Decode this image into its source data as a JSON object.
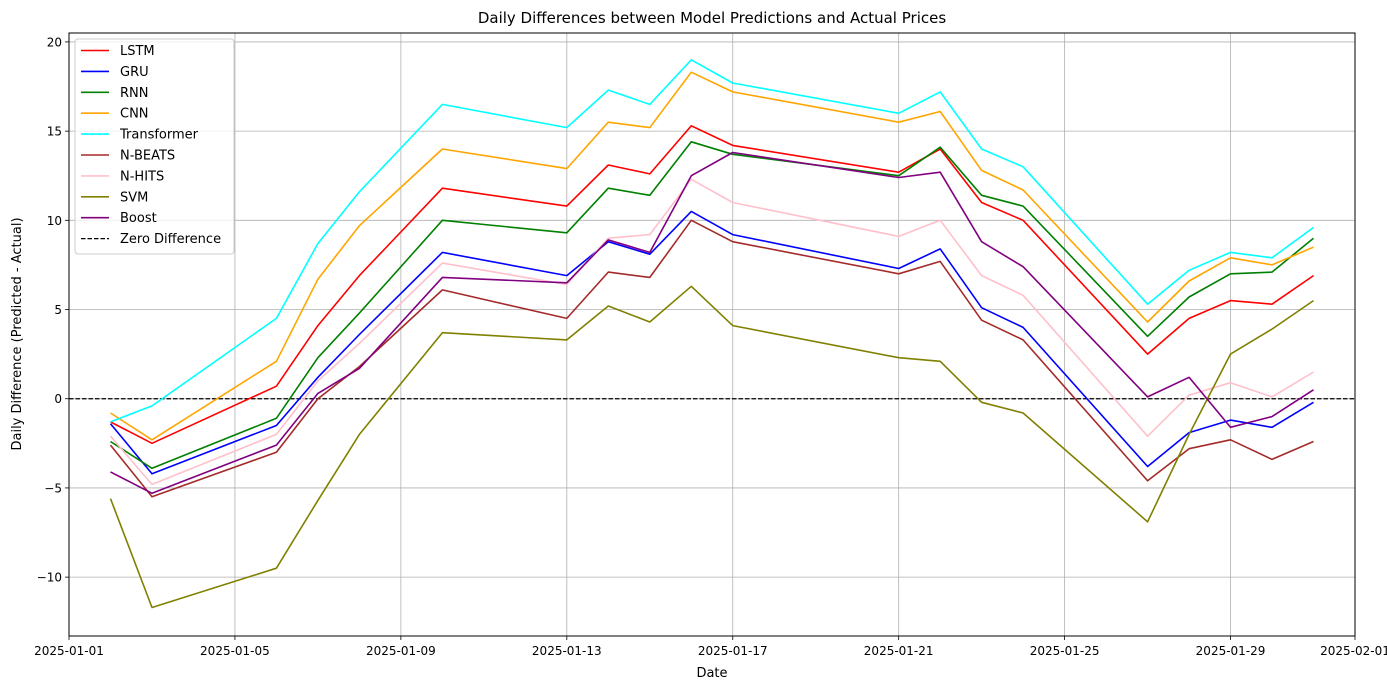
{
  "chart_data": {
    "type": "line",
    "title": "Daily Differences between Model Predictions and Actual Prices",
    "xlabel": "Date",
    "ylabel": "Daily Difference (Predicted - Actual)",
    "grid": true,
    "legend_position": "top-left",
    "xlim": [
      "2025-01-01",
      "2025-02-01"
    ],
    "ylim": [
      -13.3,
      20.5
    ],
    "x_ticks": [
      "2025-01-01",
      "2025-01-05",
      "2025-01-09",
      "2025-01-13",
      "2025-01-17",
      "2025-01-21",
      "2025-01-25",
      "2025-01-29",
      "2025-02-01"
    ],
    "y_ticks": [
      20,
      15,
      10,
      5,
      0,
      -5,
      -10
    ],
    "y_tick_labels": [
      "20",
      "15",
      "10",
      "5",
      "0",
      "−5",
      "−10"
    ],
    "x": [
      "2025-01-02",
      "2025-01-03",
      "2025-01-06",
      "2025-01-07",
      "2025-01-08",
      "2025-01-10",
      "2025-01-13",
      "2025-01-14",
      "2025-01-15",
      "2025-01-16",
      "2025-01-17",
      "2025-01-21",
      "2025-01-22",
      "2025-01-23",
      "2025-01-24",
      "2025-01-27",
      "2025-01-28",
      "2025-01-29",
      "2025-01-30",
      "2025-01-31"
    ],
    "series": [
      {
        "name": "LSTM",
        "color": "#ff0000",
        "values": [
          -1.3,
          -2.5,
          0.7,
          4.1,
          6.9,
          11.8,
          10.8,
          13.1,
          12.6,
          15.3,
          14.2,
          12.7,
          14.0,
          11.0,
          10.0,
          2.5,
          4.5,
          5.5,
          5.3,
          6.9
        ]
      },
      {
        "name": "GRU",
        "color": "#0000ff",
        "values": [
          -1.4,
          -4.2,
          -1.5,
          1.2,
          3.6,
          8.2,
          6.9,
          8.8,
          8.1,
          10.5,
          9.2,
          7.3,
          8.4,
          5.1,
          4.0,
          -3.8,
          -1.9,
          -1.2,
          -1.6,
          -0.2
        ]
      },
      {
        "name": "RNN",
        "color": "#008000",
        "values": [
          -2.4,
          -3.9,
          -1.1,
          2.3,
          4.8,
          10.0,
          9.3,
          11.8,
          11.4,
          14.4,
          13.7,
          12.5,
          14.1,
          11.4,
          10.8,
          3.5,
          5.7,
          7.0,
          7.1,
          9.0
        ]
      },
      {
        "name": "CNN",
        "color": "#ffa500",
        "values": [
          -0.8,
          -2.3,
          2.1,
          6.7,
          9.7,
          14.0,
          12.9,
          15.5,
          15.2,
          18.3,
          17.2,
          15.5,
          16.1,
          12.8,
          11.7,
          4.3,
          6.6,
          7.9,
          7.5,
          8.5
        ]
      },
      {
        "name": "Transformer",
        "color": "#00ffff",
        "values": [
          -1.3,
          -0.4,
          4.5,
          8.7,
          11.6,
          16.5,
          15.2,
          17.3,
          16.5,
          19.0,
          17.7,
          16.0,
          17.2,
          14.0,
          13.0,
          5.3,
          7.2,
          8.2,
          7.9,
          9.6
        ]
      },
      {
        "name": "N-BEATS",
        "color": "#a52a2a",
        "values": [
          -2.6,
          -5.5,
          -3.0,
          0.0,
          1.8,
          6.1,
          4.5,
          7.1,
          6.8,
          10.0,
          8.8,
          7.0,
          7.7,
          4.4,
          3.3,
          -4.6,
          -2.8,
          -2.3,
          -3.4,
          -2.4
        ]
      },
      {
        "name": "N-HITS",
        "color": "#ffc0cb",
        "values": [
          -2.1,
          -4.8,
          -2.0,
          1.0,
          3.1,
          7.6,
          6.4,
          9.0,
          9.2,
          12.3,
          11.0,
          9.1,
          10.0,
          6.9,
          5.8,
          -2.1,
          0.2,
          0.9,
          0.1,
          1.5
        ]
      },
      {
        "name": "SVM",
        "color": "#808000",
        "values": [
          -5.6,
          -11.7,
          -9.5,
          -5.7,
          -2.0,
          3.7,
          3.3,
          5.2,
          4.3,
          6.3,
          4.1,
          2.3,
          2.1,
          -0.2,
          -0.8,
          -6.9,
          -2.0,
          2.5,
          3.9,
          5.5
        ]
      },
      {
        "name": "Boost",
        "color": "#800080",
        "values": [
          -4.1,
          -5.3,
          -2.6,
          0.3,
          1.7,
          6.8,
          6.5,
          8.9,
          8.2,
          12.5,
          13.8,
          12.4,
          12.7,
          8.8,
          7.4,
          0.1,
          1.2,
          -1.6,
          -1.0,
          0.5
        ]
      }
    ],
    "reference_line": {
      "name": "Zero Difference",
      "y": 0,
      "color": "#000000",
      "style": "dashed"
    }
  }
}
